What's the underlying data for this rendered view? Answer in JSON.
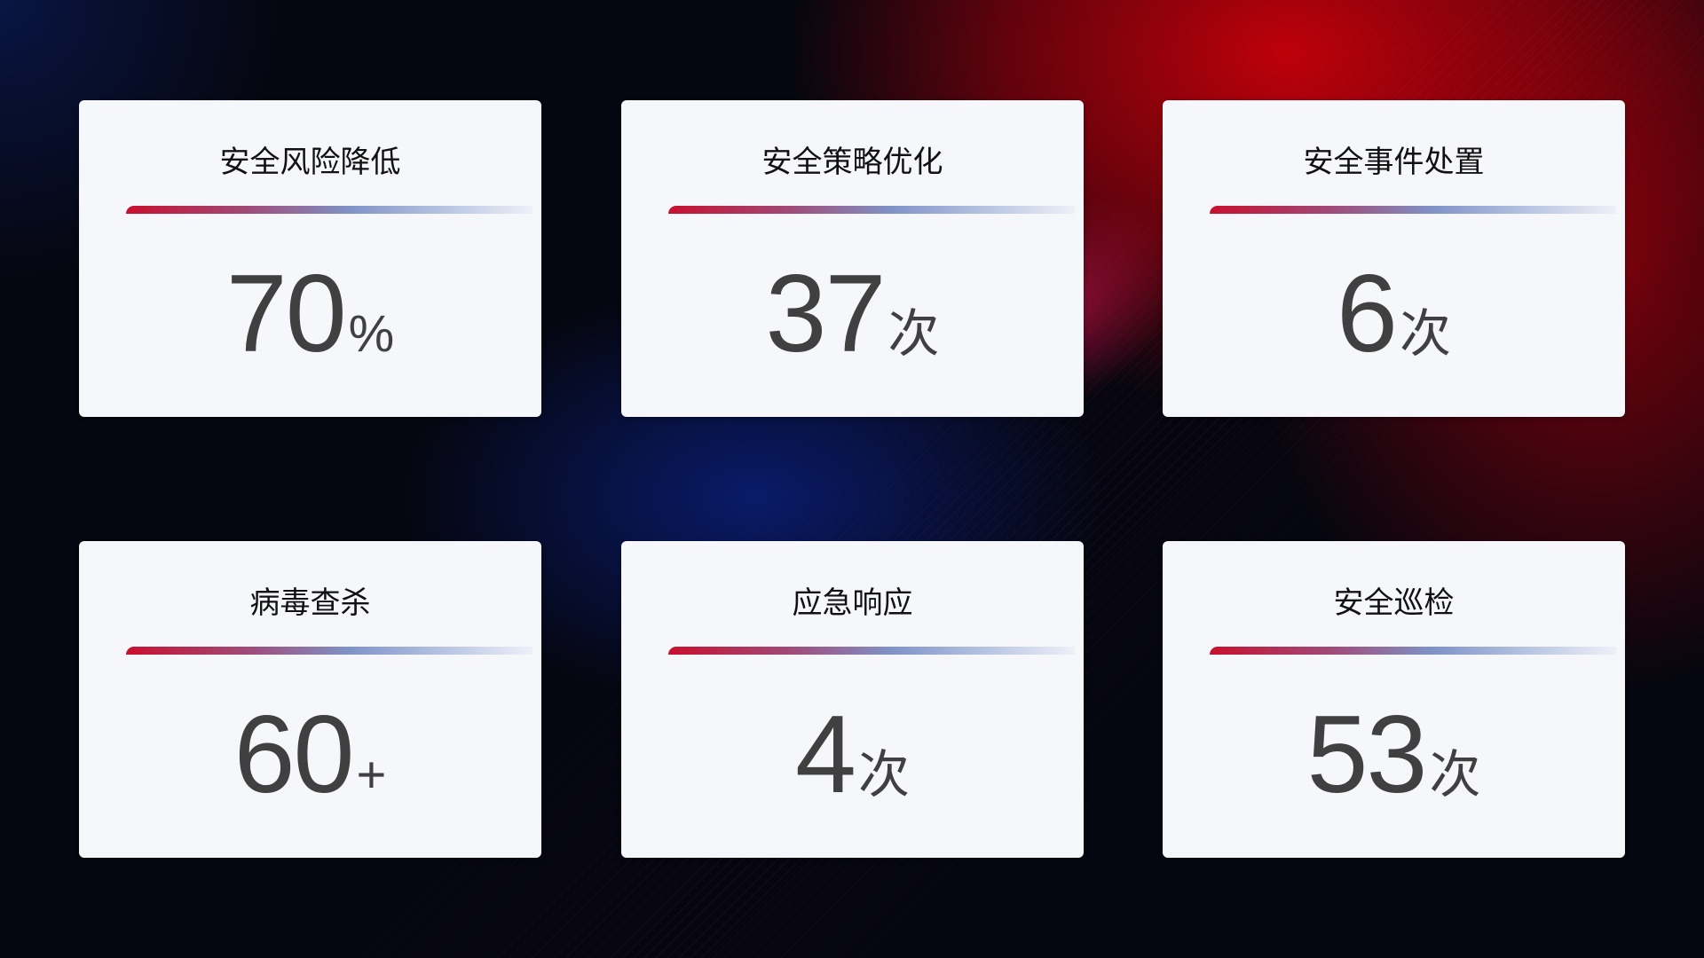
{
  "cards": [
    {
      "title": "安全风险降低",
      "value": "70",
      "suffix": "%"
    },
    {
      "title": "安全策略优化",
      "value": "37",
      "suffix": "次"
    },
    {
      "title": "安全事件处置",
      "value": "6",
      "suffix": "次"
    },
    {
      "title": "病毒查杀",
      "value": "60",
      "suffix": "+"
    },
    {
      "title": "应急响应",
      "value": "4",
      "suffix": "次"
    },
    {
      "title": "安全巡检",
      "value": "53",
      "suffix": "次"
    }
  ],
  "colors": {
    "accent_red": "#c8102e",
    "accent_blue": "#7f93c7",
    "card_bg": "#f6f7fb",
    "value_text": "#404040"
  }
}
